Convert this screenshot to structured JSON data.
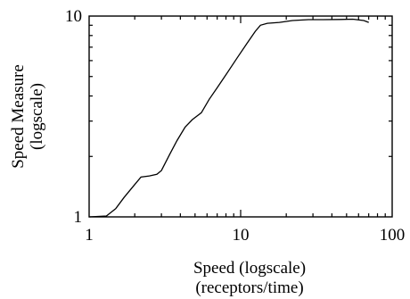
{
  "chart_data": {
    "type": "line",
    "title": "",
    "xlabel": [
      "Speed (logscale)",
      "(receptors/time)"
    ],
    "ylabel": [
      "Speed Measure",
      "(logscale)"
    ],
    "xscale": "log",
    "yscale": "log",
    "xlim": [
      1,
      100
    ],
    "ylim": [
      1,
      10
    ],
    "x_ticks": [
      1,
      10,
      100
    ],
    "x_tick_labels": [
      "1",
      "10",
      "100"
    ],
    "y_ticks": [
      1,
      10
    ],
    "y_tick_labels": [
      "1",
      "10"
    ],
    "grid": false,
    "legend": "none",
    "line_color": "#000000",
    "series": [
      {
        "x": [
          1.0,
          1.3,
          1.5,
          1.7,
          2.0,
          2.2,
          2.5,
          2.8,
          3.0,
          3.4,
          3.8,
          4.3,
          4.8,
          5.5,
          6.2,
          7.0,
          8.0,
          9.5,
          11.0,
          12.5,
          13.5,
          15.0,
          18.0,
          22.0,
          28.0,
          35.0,
          45.0,
          55.0,
          65.0,
          70.0
        ],
        "y": [
          1.0,
          1.01,
          1.1,
          1.25,
          1.45,
          1.58,
          1.6,
          1.63,
          1.7,
          2.05,
          2.4,
          2.8,
          3.05,
          3.3,
          3.85,
          4.4,
          5.1,
          6.2,
          7.3,
          8.4,
          9.0,
          9.2,
          9.3,
          9.5,
          9.6,
          9.6,
          9.62,
          9.65,
          9.5,
          9.3
        ]
      }
    ]
  }
}
